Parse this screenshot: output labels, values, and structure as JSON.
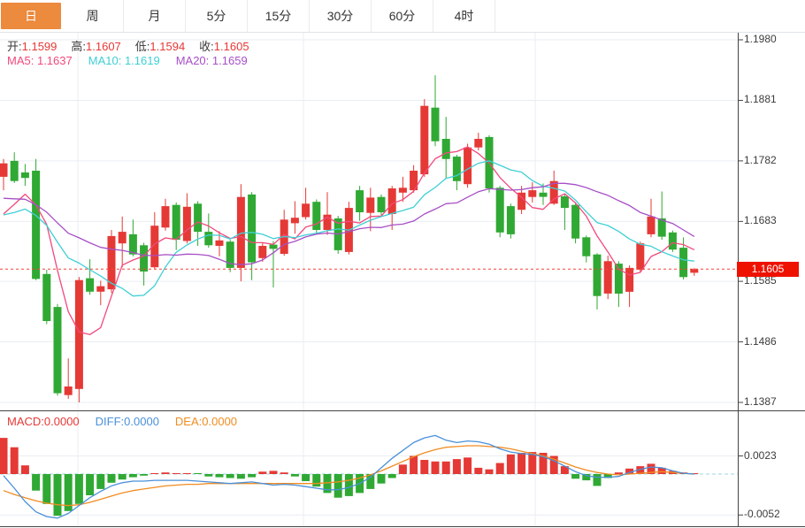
{
  "toolbar": {
    "tabs": [
      {
        "label": "日",
        "selected": true
      },
      {
        "label": "周",
        "selected": false
      },
      {
        "label": "月",
        "selected": false
      },
      {
        "label": "5分",
        "selected": false
      },
      {
        "label": "15分",
        "selected": false
      },
      {
        "label": "30分",
        "selected": false
      },
      {
        "label": "60分",
        "selected": false
      },
      {
        "label": "4时",
        "selected": false
      }
    ]
  },
  "main_chart": {
    "ohlc": {
      "open_label": "开:",
      "open": "1.1599",
      "high_label": "高:",
      "high": "1.1607",
      "low_label": "低:",
      "low": "1.1594",
      "close_label": "收:",
      "close": "1.1605"
    },
    "ma": {
      "ma5_label": "MA5:",
      "ma5": "1.1637",
      "ma10_label": "MA10:",
      "ma10": "1.1619",
      "ma20_label": "MA20:",
      "ma20": "1.1659"
    },
    "y_axis_labels": [
      "1.1980",
      "1.1881",
      "1.1782",
      "1.1683",
      "1.1585",
      "1.1486",
      "1.1387"
    ],
    "price_tag": "1.1605"
  },
  "macd_panel": {
    "macd_label": "MACD:",
    "macd": "0.0000",
    "diff_label": "DIFF:",
    "diff": "0.0000",
    "dea_label": "DEA:",
    "dea": "0.0000",
    "y_axis_labels": [
      "0.0023",
      "-0.0052"
    ]
  },
  "colors": {
    "up": "#e53935",
    "down": "#2fa933",
    "ma5": "#f2497c",
    "ma10": "#3fcfd5",
    "ma20": "#a74fc6",
    "diff": "#4a90d9",
    "dea": "#f08c21",
    "tag": "#ee1100",
    "accent_tab": "#ec8a3e",
    "grid": "#e9edf2",
    "axis": "#444444",
    "zero_line": "#9ed7e2",
    "price_line": "#f44336"
  },
  "chart_data": [
    {
      "type": "candlestick",
      "title": "EUR/USD daily candles with MA5/MA10/MA20 overlays",
      "ylim": [
        1.1387,
        1.198
      ],
      "y_ticks": [
        1.198,
        1.1881,
        1.1782,
        1.1683,
        1.1585,
        1.1486,
        1.1387
      ],
      "current_price": 1.1605,
      "ma_periods": [
        5,
        10,
        20
      ],
      "ma_seed": [
        1.176,
        1.1765,
        1.177,
        1.1768,
        1.1762,
        1.1755,
        1.1748,
        1.174,
        1.1732,
        1.1724,
        1.1716,
        1.1708,
        1.17,
        1.1692,
        1.1684,
        1.1676,
        1.167,
        1.1672,
        1.1676,
        1.168
      ],
      "candles": [
        [
          1.1756,
          1.1785,
          1.1734,
          1.1778
        ],
        [
          1.1782,
          1.1796,
          1.1746,
          1.1749
        ],
        [
          1.1763,
          1.1777,
          1.1741,
          1.1754
        ],
        [
          1.1766,
          1.1785,
          1.1587,
          1.1589
        ],
        [
          1.1597,
          1.1604,
          1.1515,
          1.152
        ],
        [
          1.1543,
          1.1548,
          1.1398,
          1.1402
        ],
        [
          1.1399,
          1.1459,
          1.1393,
          1.1413
        ],
        [
          1.1409,
          1.1592,
          1.1387,
          1.1587
        ],
        [
          1.159,
          1.1621,
          1.1563,
          1.1568
        ],
        [
          1.1568,
          1.1586,
          1.1546,
          1.1577
        ],
        [
          1.1572,
          1.1669,
          1.1566,
          1.1659
        ],
        [
          1.1647,
          1.1691,
          1.1608,
          1.1666
        ],
        [
          1.1662,
          1.1686,
          1.1626,
          1.1629
        ],
        [
          1.1644,
          1.1648,
          1.1578,
          1.1601
        ],
        [
          1.1608,
          1.1698,
          1.1605,
          1.1676
        ],
        [
          1.1673,
          1.172,
          1.1668,
          1.1708
        ],
        [
          1.171,
          1.1714,
          1.1636,
          1.1653
        ],
        [
          1.1651,
          1.1729,
          1.1647,
          1.1707
        ],
        [
          1.1712,
          1.1716,
          1.1643,
          1.1666
        ],
        [
          1.1666,
          1.1696,
          1.164,
          1.1644
        ],
        [
          1.1643,
          1.1667,
          1.1626,
          1.1652
        ],
        [
          1.165,
          1.1653,
          1.16,
          1.1607
        ],
        [
          1.1607,
          1.1744,
          1.1585,
          1.1723
        ],
        [
          1.1727,
          1.1731,
          1.1587,
          1.1616
        ],
        [
          1.1623,
          1.1649,
          1.1617,
          1.1643
        ],
        [
          1.1645,
          1.1651,
          1.1575,
          1.1638
        ],
        [
          1.163,
          1.1702,
          1.1627,
          1.1686
        ],
        [
          1.168,
          1.1716,
          1.1663,
          1.1689
        ],
        [
          1.169,
          1.1738,
          1.1686,
          1.1712
        ],
        [
          1.1715,
          1.1719,
          1.1663,
          1.1669
        ],
        [
          1.1669,
          1.1731,
          1.1661,
          1.1694
        ],
        [
          1.1688,
          1.1692,
          1.163,
          1.1636
        ],
        [
          1.1633,
          1.1715,
          1.1629,
          1.1705
        ],
        [
          1.1734,
          1.1741,
          1.1684,
          1.1698
        ],
        [
          1.1697,
          1.1738,
          1.1667,
          1.1722
        ],
        [
          1.1723,
          1.1727,
          1.1693,
          1.1698
        ],
        [
          1.1695,
          1.1741,
          1.1669,
          1.1737
        ],
        [
          1.173,
          1.1756,
          1.1715,
          1.1738
        ],
        [
          1.1734,
          1.1775,
          1.173,
          1.1766
        ],
        [
          1.176,
          1.1883,
          1.1756,
          1.1872
        ],
        [
          1.1869,
          1.1922,
          1.1806,
          1.1814
        ],
        [
          1.1818,
          1.1854,
          1.1753,
          1.1785
        ],
        [
          1.1789,
          1.1792,
          1.1734,
          1.1749
        ],
        [
          1.1744,
          1.181,
          1.1738,
          1.1804
        ],
        [
          1.1804,
          1.1828,
          1.1799,
          1.1818
        ],
        [
          1.1821,
          1.1824,
          1.173,
          1.1737
        ],
        [
          1.1738,
          1.1741,
          1.1657,
          1.1665
        ],
        [
          1.1708,
          1.1712,
          1.1655,
          1.1662
        ],
        [
          1.1702,
          1.1741,
          1.1695,
          1.173
        ],
        [
          1.1723,
          1.1747,
          1.1714,
          1.1734
        ],
        [
          1.173,
          1.1745,
          1.171,
          1.1723
        ],
        [
          1.1712,
          1.1766,
          1.171,
          1.1749
        ],
        [
          1.1724,
          1.1727,
          1.1669,
          1.1705
        ],
        [
          1.171,
          1.1713,
          1.1647,
          1.1655
        ],
        [
          1.1657,
          1.166,
          1.1616,
          1.1626
        ],
        [
          1.1629,
          1.1631,
          1.1539,
          1.1561
        ],
        [
          1.1565,
          1.1627,
          1.1556,
          1.1618
        ],
        [
          1.1614,
          1.1618,
          1.1543,
          1.1565
        ],
        [
          1.1568,
          1.1611,
          1.1543,
          1.1607
        ],
        [
          1.1604,
          1.165,
          1.1601,
          1.1647
        ],
        [
          1.1662,
          1.172,
          1.1657,
          1.1691
        ],
        [
          1.1688,
          1.1732,
          1.1653,
          1.1658
        ],
        [
          1.1665,
          1.1668,
          1.1633,
          1.1637
        ],
        [
          1.164,
          1.1657,
          1.1588,
          1.1592
        ],
        [
          1.1599,
          1.1607,
          1.1594,
          1.1605
        ]
      ]
    },
    {
      "type": "macd",
      "title": "MACD(12,26,9)",
      "ylim": [
        -0.0062,
        0.0056
      ],
      "y_ticks": [
        0.0023,
        -0.0052
      ],
      "histogram": [
        0.0046,
        0.0034,
        0.0011,
        -0.0021,
        -0.0038,
        -0.0053,
        -0.0047,
        -0.0038,
        -0.0027,
        -0.0019,
        -0.0011,
        -0.0007,
        -0.0004,
        -0.0002,
        0.0001,
        0.0002,
        0.0001,
        0.0,
        -0.0001,
        -0.0003,
        -0.0004,
        -0.0005,
        -0.0006,
        -0.0004,
        0.0003,
        0.0004,
        0.0002,
        -0.0003,
        -0.0009,
        -0.0016,
        -0.0024,
        -0.003,
        -0.0028,
        -0.0024,
        -0.0019,
        -0.0012,
        -0.0005,
        0.0012,
        0.0023,
        0.0018,
        0.0016,
        0.0016,
        0.0019,
        0.0021,
        0.0008,
        0.0006,
        0.0014,
        0.0025,
        0.0027,
        0.0028,
        0.0027,
        0.0023,
        0.001,
        -0.0006,
        -0.0008,
        -0.0015,
        -0.0005,
        0.0002,
        0.0007,
        0.001,
        0.0013,
        0.0008,
        0.0004,
        0.0002,
        0.0
      ],
      "diff": [
        -0.0002,
        -0.0018,
        -0.0035,
        -0.0048,
        -0.0054,
        -0.0056,
        -0.005,
        -0.004,
        -0.003,
        -0.0022,
        -0.0015,
        -0.0011,
        -0.0009,
        -0.0009,
        -0.0008,
        -0.0008,
        -0.0008,
        -0.0008,
        -0.0009,
        -0.001,
        -0.0011,
        -0.0012,
        -0.0011,
        -0.001,
        -0.0012,
        -0.0014,
        -0.0013,
        -0.0014,
        -0.0016,
        -0.0018,
        -0.002,
        -0.002,
        -0.0017,
        -0.0012,
        -0.0004,
        0.0008,
        0.002,
        0.003,
        0.004,
        0.0046,
        0.0049,
        0.0043,
        0.004,
        0.0042,
        0.0041,
        0.0038,
        0.0032,
        0.0028,
        0.0026,
        0.0025,
        0.0022,
        0.0017,
        0.001,
        0.0003,
        -0.0002,
        -0.0004,
        -0.0004,
        -0.0003,
        0.0002,
        0.0006,
        0.0009,
        0.0008,
        0.0004,
        0.0001,
        0.0
      ],
      "dea": [
        -0.0021,
        -0.0026,
        -0.003,
        -0.0034,
        -0.0037,
        -0.0039,
        -0.004,
        -0.0039,
        -0.0036,
        -0.0032,
        -0.0028,
        -0.0024,
        -0.0021,
        -0.0019,
        -0.0017,
        -0.0015,
        -0.0014,
        -0.0013,
        -0.0013,
        -0.0012,
        -0.0012,
        -0.0012,
        -0.0012,
        -0.0012,
        -0.0012,
        -0.0012,
        -0.0012,
        -0.0012,
        -0.0012,
        -0.0012,
        -0.0011,
        -0.001,
        -0.0008,
        -0.0005,
        -0.0001,
        0.0004,
        0.001,
        0.0016,
        0.0022,
        0.0027,
        0.0031,
        0.0034,
        0.0035,
        0.0036,
        0.0036,
        0.0035,
        0.0034,
        0.0032,
        0.0029,
        0.0026,
        0.0023,
        0.0019,
        0.0014,
        0.0009,
        0.0005,
        0.0002,
        0.0,
        -0.0001,
        0.0,
        0.0001,
        0.0002,
        0.0003,
        0.0002,
        0.0001,
        0.0
      ]
    }
  ]
}
